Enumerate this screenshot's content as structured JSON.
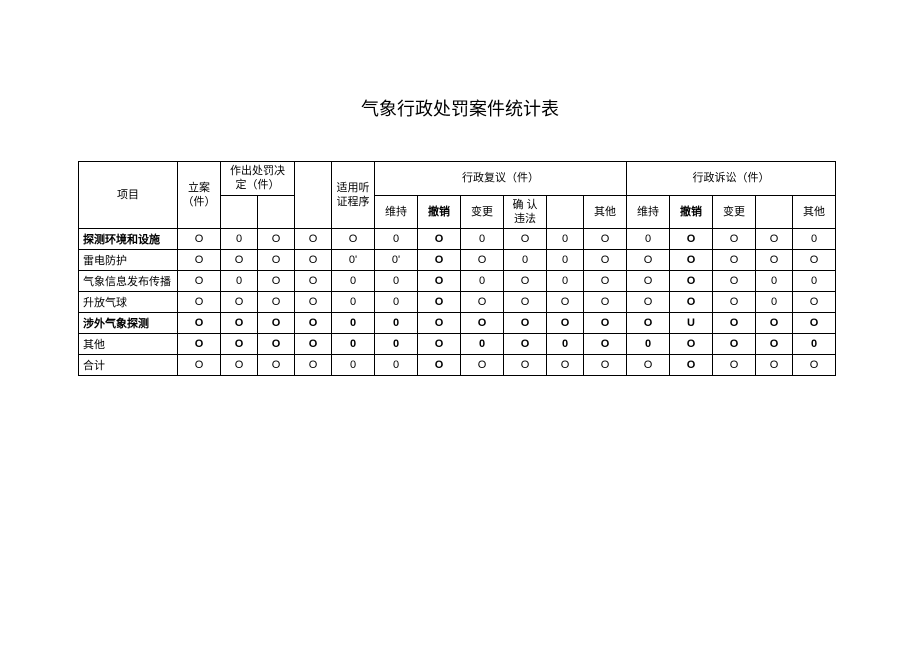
{
  "title": "气象行政处罚案件统计表",
  "headers": {
    "project": "项目",
    "filing": "立案（件）",
    "decision_group": "作出处罚决定（件）",
    "hearing": "适用听证程序",
    "review_group": "行政复议（件）",
    "litigation_group": "行政诉讼（件）",
    "maintain": "维持",
    "revoke": "撤销",
    "change": "变更",
    "confirm_illegal": "确 认违法",
    "other": "其他"
  },
  "rows": [
    {
      "label": "探测环境和设施",
      "bold_label": true,
      "cells": [
        "O",
        "0",
        "O",
        "O",
        "O",
        "0",
        "O",
        "0",
        "O",
        "0",
        "O",
        "0",
        "O",
        "O",
        "O",
        "0"
      ]
    },
    {
      "label": "雷电防护",
      "bold_label": false,
      "cells": [
        "O",
        "O",
        "O",
        "O",
        "0'",
        "0'",
        "O",
        "O",
        "0",
        "0",
        "O",
        "O",
        "O",
        "O",
        "O",
        "O"
      ]
    },
    {
      "label": "气象信息发布传播",
      "bold_label": false,
      "cells": [
        "O",
        "0",
        "O",
        "O",
        "0",
        "0",
        "O",
        "0",
        "O",
        "0",
        "O",
        "O",
        "O",
        "O",
        "0",
        "0"
      ]
    },
    {
      "label": "升放气球",
      "bold_label": false,
      "cells": [
        "O",
        "O",
        "O",
        "O",
        "0",
        "0",
        "O",
        "O",
        "O",
        "O",
        "O",
        "O",
        "O",
        "O",
        "0",
        "O"
      ]
    },
    {
      "label": "涉外气象探测",
      "bold_label": true,
      "cells": [
        "O",
        "O",
        "O",
        "O",
        "0",
        "0",
        "O",
        "O",
        "O",
        "O",
        "O",
        "O",
        "U",
        "O",
        "O",
        "O"
      ]
    },
    {
      "label": "其他",
      "bold_label": false,
      "cells": [
        "O",
        "O",
        "O",
        "O",
        "0",
        "0",
        "O",
        "0",
        "O",
        "0",
        "O",
        "0",
        "O",
        "O",
        "O",
        "0"
      ]
    },
    {
      "label": "合计",
      "bold_label": false,
      "cells": [
        "O",
        "O",
        "O",
        "O",
        "0",
        "0",
        "O",
        "O",
        "O",
        "O",
        "O",
        "O",
        "O",
        "O",
        "O",
        "O"
      ]
    }
  ],
  "bold_cell_cols": [
    7,
    13
  ],
  "bold_row_indices": [
    4,
    5
  ]
}
